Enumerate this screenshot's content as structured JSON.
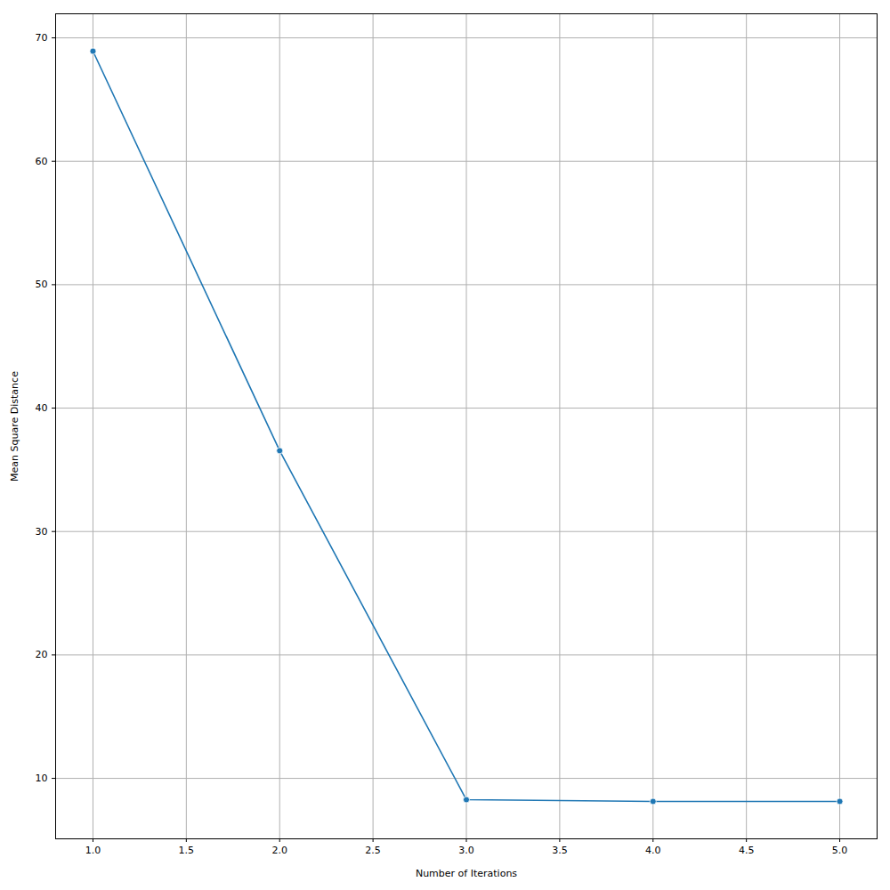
{
  "chart_data": {
    "type": "line",
    "x_label": "Number of Iterations",
    "y_label": "Mean Square Distance",
    "x": [
      1,
      2,
      3,
      4,
      5
    ],
    "series": [
      {
        "color": "#1f77b4",
        "values": [
          68.92,
          36.55,
          8.27,
          8.13,
          8.13
        ],
        "marker": "o",
        "line_style": "solid"
      }
    ],
    "xlim": [
      0.8,
      5.2
    ],
    "xticks": [
      {
        "value": 1,
        "label": "1.0"
      },
      {
        "value": 1.5,
        "label": "1.5"
      },
      {
        "value": 2,
        "label": "2.0"
      },
      {
        "value": 2.5,
        "label": "2.5"
      },
      {
        "value": 3,
        "label": "3.0"
      },
      {
        "value": 3.5,
        "label": "3.5"
      },
      {
        "value": 4,
        "label": "4.0"
      },
      {
        "value": 4.5,
        "label": "4.5"
      },
      {
        "value": 5,
        "label": "5.0"
      }
    ],
    "ylim": [
      5.1,
      71.95
    ],
    "yticks": [
      10,
      20,
      30,
      40,
      50,
      60,
      70
    ],
    "grid": true
  }
}
